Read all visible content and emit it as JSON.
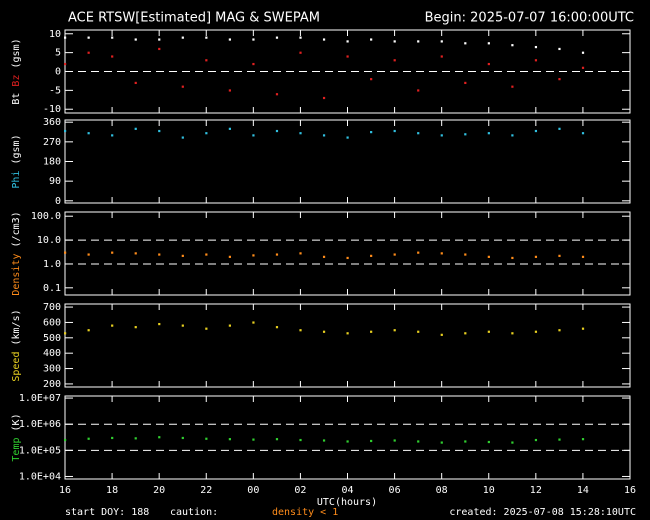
{
  "header": {
    "title": "ACE RTSW[Estimated] MAG & SWEPAM",
    "begin": "Begin: 2025-07-07 16:00:00UTC"
  },
  "x_axis": {
    "label": "UTC(hours)",
    "xlim": [
      0,
      24
    ],
    "xticks": [
      {
        "value": 0,
        "label": "16"
      },
      {
        "value": 2,
        "label": "18"
      },
      {
        "value": 4,
        "label": "20"
      },
      {
        "value": 6,
        "label": "22"
      },
      {
        "value": 8,
        "label": "00"
      },
      {
        "value": 10,
        "label": "02"
      },
      {
        "value": 12,
        "label": "04"
      },
      {
        "value": 14,
        "label": "06"
      },
      {
        "value": 16,
        "label": "08"
      },
      {
        "value": 18,
        "label": "10"
      },
      {
        "value": 20,
        "label": "12"
      },
      {
        "value": 22,
        "label": "14"
      },
      {
        "value": 24,
        "label": "16"
      }
    ],
    "x": [
      0,
      1,
      2,
      3,
      4,
      5,
      6,
      7,
      8,
      9,
      10,
      11,
      12,
      13,
      14,
      15,
      16,
      17,
      18,
      19,
      20,
      21,
      22
    ]
  },
  "chart_data": [
    {
      "type": "scatter",
      "ylabel": "(gsm)",
      "ylim": [
        -11,
        11
      ],
      "yticks": [
        -10,
        -5,
        0,
        5,
        10
      ],
      "hlines": [
        0
      ],
      "log": false,
      "series": [
        {
          "name": "Bt",
          "color": "#ffffff",
          "values": [
            9,
            9,
            9,
            8.5,
            8.5,
            9,
            9,
            8.5,
            8.5,
            9,
            9,
            8.5,
            8,
            8.5,
            8,
            8,
            8,
            7.5,
            7.5,
            7,
            6.5,
            6,
            5
          ]
        },
        {
          "name": "Bz",
          "color": "#e02020",
          "values": [
            2,
            5,
            4,
            -3,
            6,
            -4,
            3,
            -5,
            2,
            -6,
            5,
            -7,
            4,
            -2,
            3,
            -5,
            4,
            -3,
            2,
            -4,
            3,
            -2,
            1
          ]
        }
      ]
    },
    {
      "type": "scatter",
      "ylabel": "(gsm)",
      "ylim": [
        -10,
        370
      ],
      "yticks": [
        0,
        90,
        180,
        270,
        360
      ],
      "hlines": [],
      "log": false,
      "series": [
        {
          "name": "Phi",
          "color": "#30c0e0",
          "values": [
            320,
            310,
            300,
            330,
            320,
            290,
            310,
            330,
            300,
            320,
            310,
            300,
            290,
            315,
            320,
            310,
            300,
            305,
            310,
            300,
            320,
            330,
            310
          ]
        }
      ]
    },
    {
      "type": "scatter",
      "ylabel": "(/cm3)",
      "ylim": [
        0.05,
        150
      ],
      "log": true,
      "yticks": [
        0.1,
        {
          "value": 1,
          "label": "1.0"
        },
        {
          "value": 10,
          "label": "10.0"
        },
        {
          "value": 100,
          "label": "100.0"
        }
      ],
      "hlines": [
        1,
        10
      ],
      "series": [
        {
          "name": "Density",
          "color": "#ff8c1a",
          "values": [
            3,
            2.5,
            3,
            2.8,
            2.5,
            2.2,
            2.5,
            2.0,
            2.3,
            2.5,
            2.8,
            2.0,
            1.8,
            2.2,
            2.5,
            3,
            2.8,
            2.5,
            2,
            1.8,
            2,
            2.2,
            2
          ]
        }
      ]
    },
    {
      "type": "scatter",
      "ylabel": "(km/s)",
      "ylim": [
        180,
        720
      ],
      "yticks": [
        200,
        300,
        400,
        500,
        600,
        700
      ],
      "hlines": [],
      "log": false,
      "series": [
        {
          "name": "Speed",
          "color": "#e8d020",
          "values": [
            530,
            550,
            580,
            570,
            590,
            580,
            560,
            580,
            600,
            570,
            550,
            540,
            530,
            540,
            550,
            540,
            520,
            530,
            540,
            530,
            540,
            550,
            560
          ]
        }
      ]
    },
    {
      "type": "scatter",
      "ylabel": "(K)",
      "ylim": [
        8000,
        12000000
      ],
      "log": true,
      "yticks": [
        {
          "value": 10000,
          "label": "1.0E+04"
        },
        {
          "value": 100000,
          "label": "1.0E+05"
        },
        {
          "value": 1000000,
          "label": "1.0E+06"
        },
        {
          "value": 10000000,
          "label": "1.0E+07"
        }
      ],
      "hlines": [
        100000,
        1000000
      ],
      "series": [
        {
          "name": "Temp",
          "color": "#30d030",
          "values": [
            250000,
            280000,
            300000,
            290000,
            320000,
            300000,
            280000,
            270000,
            260000,
            270000,
            250000,
            240000,
            220000,
            230000,
            240000,
            220000,
            200000,
            220000,
            210000,
            200000,
            250000,
            260000,
            270000
          ]
        }
      ]
    }
  ],
  "footer": {
    "start": "start DOY: 188",
    "caution": "caution:",
    "density_note": "density < 1",
    "created": "created: 2025-07-08 15:28:10UTC"
  }
}
